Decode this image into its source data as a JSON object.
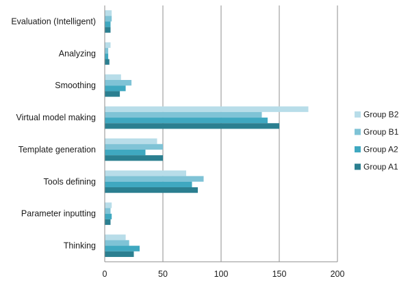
{
  "chart_data": {
    "type": "bar",
    "orientation": "horizontal",
    "categories": [
      "Evaluation (Intelligent)",
      "Analyzing",
      "Smoothing",
      "Virtual model making",
      "Template generation",
      "Tools defining",
      "Parameter inputting",
      "Thinking"
    ],
    "series": [
      {
        "name": "Group B2",
        "color": "#b8dde9",
        "values": [
          6,
          5,
          14,
          175,
          45,
          70,
          6,
          18
        ]
      },
      {
        "name": "Group B1",
        "color": "#7fc3d6",
        "values": [
          6,
          3,
          23,
          135,
          50,
          85,
          5,
          21
        ]
      },
      {
        "name": "Group A2",
        "color": "#3fa8c0",
        "values": [
          5,
          3,
          18,
          140,
          35,
          75,
          6,
          30
        ]
      },
      {
        "name": "Group A1",
        "color": "#2b7f90",
        "values": [
          5,
          4,
          13,
          150,
          50,
          80,
          5,
          25
        ]
      }
    ],
    "xlim": [
      0,
      200
    ],
    "xticks": [
      "0",
      "50",
      "100",
      "150",
      "200"
    ],
    "grid": true,
    "legend_position": "right",
    "title": "",
    "xlabel": "",
    "ylabel": ""
  }
}
